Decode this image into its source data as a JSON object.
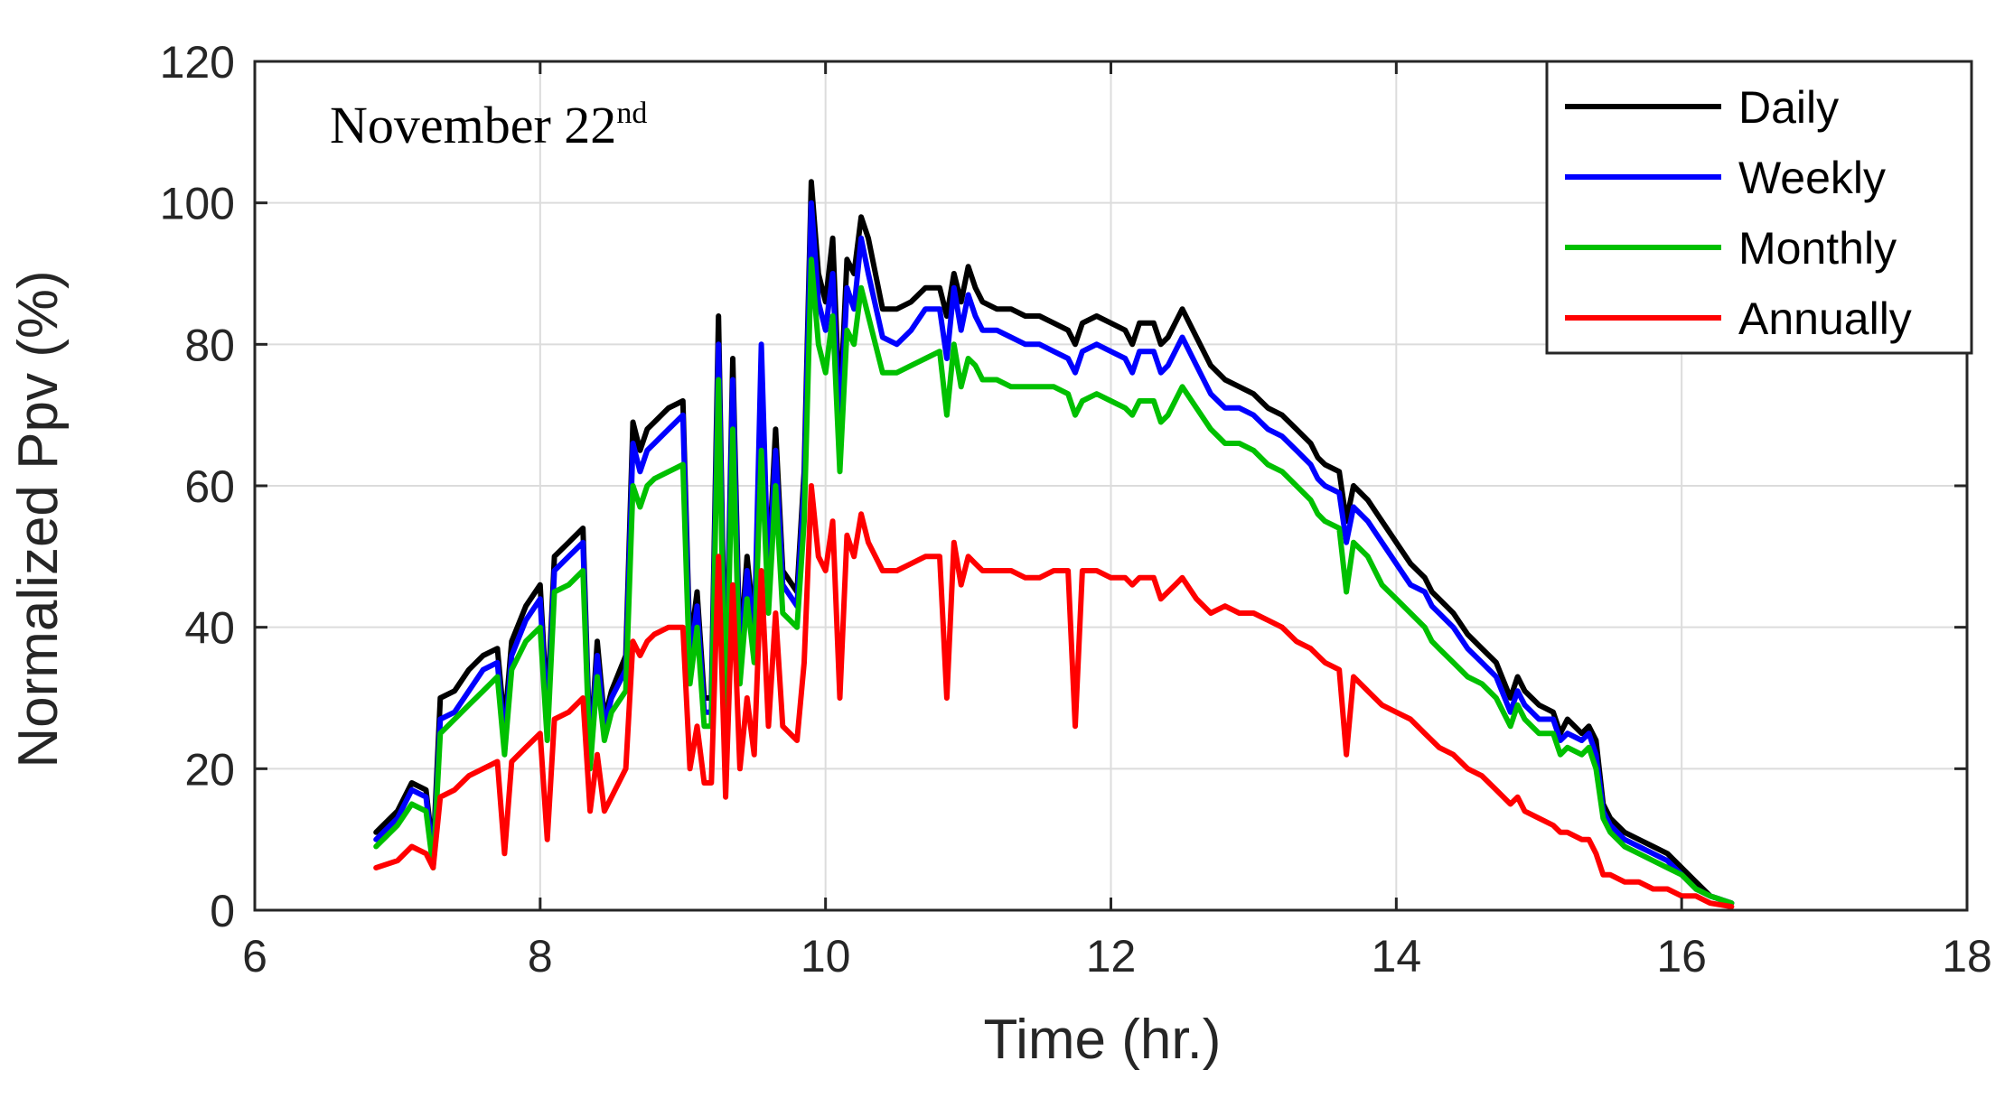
{
  "chart_data": {
    "type": "line",
    "title": "",
    "annotation": {
      "text": "November 22",
      "superscript": "nd"
    },
    "xlabel": "Time (hr.)",
    "ylabel": "Normalized Ppv (%)",
    "xlim": [
      6,
      18
    ],
    "ylim": [
      0,
      120
    ],
    "xticks": [
      6,
      8,
      10,
      12,
      14,
      16,
      18
    ],
    "yticks": [
      0,
      20,
      40,
      60,
      80,
      100,
      120
    ],
    "xtick_labels": [
      "6",
      "8",
      "10",
      "12",
      "14",
      "16",
      "18"
    ],
    "ytick_labels": [
      "0",
      "20",
      "40",
      "60",
      "80",
      "100",
      "120"
    ],
    "grid": true,
    "legend_position": "top-right",
    "x": [
      6.85,
      7.0,
      7.1,
      7.2,
      7.25,
      7.3,
      7.4,
      7.5,
      7.6,
      7.7,
      7.75,
      7.8,
      7.9,
      8.0,
      8.05,
      8.1,
      8.2,
      8.3,
      8.35,
      8.4,
      8.45,
      8.5,
      8.6,
      8.65,
      8.7,
      8.75,
      8.8,
      8.9,
      9.0,
      9.05,
      9.1,
      9.15,
      9.2,
      9.25,
      9.3,
      9.35,
      9.4,
      9.45,
      9.5,
      9.55,
      9.6,
      9.65,
      9.7,
      9.8,
      9.85,
      9.9,
      9.95,
      10.0,
      10.05,
      10.1,
      10.15,
      10.2,
      10.25,
      10.3,
      10.4,
      10.5,
      10.6,
      10.7,
      10.8,
      10.85,
      10.9,
      10.95,
      11.0,
      11.05,
      11.1,
      11.2,
      11.3,
      11.4,
      11.5,
      11.6,
      11.7,
      11.75,
      11.8,
      11.9,
      12.0,
      12.1,
      12.15,
      12.2,
      12.3,
      12.35,
      12.4,
      12.45,
      12.5,
      12.6,
      12.7,
      12.8,
      12.9,
      13.0,
      13.1,
      13.2,
      13.3,
      13.4,
      13.45,
      13.5,
      13.6,
      13.65,
      13.7,
      13.8,
      13.9,
      14.0,
      14.1,
      14.2,
      14.25,
      14.3,
      14.4,
      14.5,
      14.6,
      14.7,
      14.8,
      14.85,
      14.9,
      15.0,
      15.1,
      15.15,
      15.2,
      15.3,
      15.35,
      15.4,
      15.45,
      15.5,
      15.6,
      15.7,
      15.8,
      15.9,
      16.0,
      16.1,
      16.2,
      16.35
    ],
    "series": [
      {
        "name": "Daily",
        "color": "#000000",
        "values": [
          11,
          14,
          18,
          17,
          8,
          30,
          31,
          34,
          36,
          37,
          26,
          38,
          43,
          46,
          28,
          50,
          52,
          54,
          22,
          38,
          27,
          31,
          36,
          69,
          65,
          68,
          69,
          71,
          72,
          37,
          45,
          30,
          30,
          84,
          28,
          78,
          36,
          50,
          40,
          70,
          48,
          68,
          48,
          45,
          62,
          103,
          90,
          86,
          95,
          70,
          92,
          90,
          98,
          95,
          85,
          85,
          86,
          88,
          88,
          84,
          90,
          86,
          91,
          88,
          86,
          85,
          85,
          84,
          84,
          83,
          82,
          80,
          83,
          84,
          83,
          82,
          80,
          83,
          83,
          80,
          81,
          83,
          85,
          81,
          77,
          75,
          74,
          73,
          71,
          70,
          68,
          66,
          64,
          63,
          62,
          55,
          60,
          58,
          55,
          52,
          49,
          47,
          45,
          44,
          42,
          39,
          37,
          35,
          30,
          33,
          31,
          29,
          28,
          25,
          27,
          25,
          26,
          24,
          15,
          13,
          11,
          10,
          9,
          8,
          6,
          4,
          2,
          1
        ]
      },
      {
        "name": "Weekly",
        "color": "#0000ff",
        "values": [
          10,
          13,
          17,
          16,
          7,
          27,
          28,
          31,
          34,
          35,
          24,
          36,
          41,
          44,
          26,
          48,
          50,
          52,
          21,
          36,
          26,
          30,
          34,
          66,
          62,
          65,
          66,
          68,
          70,
          35,
          43,
          28,
          28,
          80,
          27,
          75,
          34,
          48,
          38,
          80,
          46,
          65,
          46,
          43,
          60,
          100,
          86,
          82,
          90,
          67,
          88,
          85,
          95,
          90,
          81,
          80,
          82,
          85,
          85,
          78,
          88,
          82,
          87,
          84,
          82,
          82,
          81,
          80,
          80,
          79,
          78,
          76,
          79,
          80,
          79,
          78,
          76,
          79,
          79,
          76,
          77,
          79,
          81,
          77,
          73,
          71,
          71,
          70,
          68,
          67,
          65,
          63,
          61,
          60,
          59,
          52,
          57,
          55,
          52,
          49,
          46,
          45,
          43,
          42,
          40,
          37,
          35,
          33,
          28,
          31,
          29,
          27,
          27,
          24,
          25,
          24,
          25,
          22,
          14,
          12,
          10,
          9,
          8,
          7,
          5,
          3,
          2,
          1
        ]
      },
      {
        "name": "Monthly",
        "color": "#00c000",
        "values": [
          9,
          12,
          15,
          14,
          6,
          25,
          27,
          29,
          31,
          33,
          22,
          34,
          38,
          40,
          24,
          45,
          46,
          48,
          20,
          33,
          24,
          28,
          31,
          60,
          57,
          60,
          61,
          62,
          63,
          32,
          40,
          26,
          26,
          75,
          25,
          68,
          32,
          44,
          35,
          65,
          42,
          60,
          42,
          40,
          55,
          92,
          80,
          76,
          84,
          62,
          82,
          80,
          88,
          84,
          76,
          76,
          77,
          78,
          79,
          70,
          80,
          74,
          78,
          77,
          75,
          75,
          74,
          74,
          74,
          74,
          73,
          70,
          72,
          73,
          72,
          71,
          70,
          72,
          72,
          69,
          70,
          72,
          74,
          71,
          68,
          66,
          66,
          65,
          63,
          62,
          60,
          58,
          56,
          55,
          54,
          45,
          52,
          50,
          46,
          44,
          42,
          40,
          38,
          37,
          35,
          33,
          32,
          30,
          26,
          29,
          27,
          25,
          25,
          22,
          23,
          22,
          23,
          20,
          13,
          11,
          9,
          8,
          7,
          6,
          5,
          3,
          2,
          1
        ]
      },
      {
        "name": "Annually",
        "color": "#ff0000",
        "values": [
          6,
          7,
          9,
          8,
          6,
          16,
          17,
          19,
          20,
          21,
          8,
          21,
          23,
          25,
          10,
          27,
          28,
          30,
          14,
          22,
          14,
          16,
          20,
          38,
          36,
          38,
          39,
          40,
          40,
          20,
          26,
          18,
          18,
          50,
          16,
          46,
          20,
          30,
          22,
          48,
          26,
          42,
          26,
          24,
          35,
          60,
          50,
          48,
          55,
          30,
          53,
          50,
          56,
          52,
          48,
          48,
          49,
          50,
          50,
          30,
          52,
          46,
          50,
          49,
          48,
          48,
          48,
          47,
          47,
          48,
          48,
          26,
          48,
          48,
          47,
          47,
          46,
          47,
          47,
          44,
          45,
          46,
          47,
          44,
          42,
          43,
          42,
          42,
          41,
          40,
          38,
          37,
          36,
          35,
          34,
          22,
          33,
          31,
          29,
          28,
          27,
          25,
          24,
          23,
          22,
          20,
          19,
          17,
          15,
          16,
          14,
          13,
          12,
          11,
          11,
          10,
          10,
          8,
          5,
          5,
          4,
          4,
          3,
          3,
          2,
          2,
          1,
          0.5
        ]
      }
    ]
  }
}
